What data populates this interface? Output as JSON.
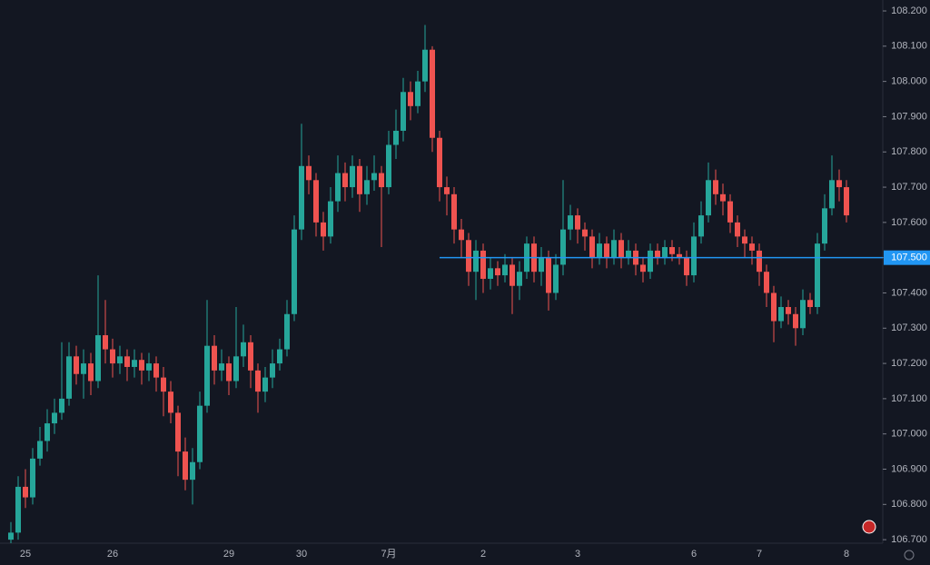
{
  "chart_data": {
    "type": "candlestick",
    "categories": [
      null,
      null,
      "25",
      null,
      null,
      null,
      null,
      null,
      null,
      null,
      null,
      null,
      null,
      null,
      "26",
      null,
      null,
      null,
      null,
      null,
      null,
      null,
      null,
      null,
      null,
      null,
      null,
      null,
      null,
      null,
      "29",
      null,
      null,
      null,
      null,
      null,
      null,
      null,
      null,
      null,
      "30",
      null,
      null,
      null,
      null,
      null,
      null,
      null,
      null,
      null,
      null,
      null,
      "7月",
      null,
      null,
      null,
      null,
      null,
      null,
      null,
      null,
      null,
      null,
      null,
      null,
      "2",
      null,
      null,
      null,
      null,
      null,
      null,
      null,
      null,
      null,
      null,
      null,
      null,
      "3",
      null,
      null,
      null,
      null,
      null,
      null,
      null,
      null,
      null,
      null,
      null,
      null,
      null,
      null,
      null,
      "6",
      null,
      null,
      null,
      null,
      null,
      null,
      null,
      null,
      "7",
      null,
      null,
      null,
      null,
      null,
      null,
      null,
      null,
      null,
      null,
      null,
      "8"
    ],
    "open": [
      106.7,
      106.72,
      106.85,
      106.82,
      106.93,
      106.98,
      107.03,
      107.06,
      107.1,
      107.22,
      107.17,
      107.2,
      107.15,
      107.28,
      107.24,
      107.2,
      107.22,
      107.19,
      107.21,
      107.18,
      107.2,
      107.16,
      107.12,
      107.06,
      106.95,
      106.87,
      106.92,
      107.08,
      107.25,
      107.18,
      107.2,
      107.15,
      107.22,
      107.26,
      107.18,
      107.12,
      107.16,
      107.2,
      107.24,
      107.34,
      107.58,
      107.76,
      107.72,
      107.6,
      107.56,
      107.66,
      107.74,
      107.7,
      107.76,
      107.68,
      107.72,
      107.74,
      107.7,
      107.82,
      107.86,
      107.97,
      107.93,
      108.0,
      108.09,
      107.84,
      107.7,
      107.68,
      107.58,
      107.55,
      107.46,
      107.52,
      107.44,
      107.47,
      107.45,
      107.48,
      107.42,
      107.46,
      107.54,
      107.46,
      107.5,
      107.4,
      107.48,
      107.58,
      107.62,
      107.58,
      107.56,
      107.5,
      107.54,
      107.5,
      107.55,
      107.5,
      107.52,
      107.48,
      107.46,
      107.52,
      107.5,
      107.53,
      107.51,
      107.5,
      107.45,
      107.56,
      107.62,
      107.72,
      107.68,
      107.66,
      107.6,
      107.56,
      107.54,
      107.52,
      107.46,
      107.4,
      107.32,
      107.36,
      107.34,
      107.3,
      107.38,
      107.36,
      107.54,
      107.64,
      107.72,
      107.7
    ],
    "high": [
      106.75,
      106.88,
      106.9,
      106.96,
      107.02,
      107.07,
      107.1,
      107.26,
      107.26,
      107.25,
      107.24,
      107.23,
      107.45,
      107.38,
      107.27,
      107.25,
      107.24,
      107.24,
      107.23,
      107.23,
      107.22,
      107.19,
      107.15,
      107.08,
      106.99,
      106.96,
      107.12,
      107.38,
      107.28,
      107.24,
      107.22,
      107.36,
      107.31,
      107.28,
      107.2,
      107.19,
      107.24,
      107.27,
      107.38,
      107.62,
      107.88,
      107.79,
      107.74,
      107.63,
      107.7,
      107.79,
      107.77,
      107.79,
      107.78,
      107.76,
      107.79,
      107.76,
      107.86,
      107.92,
      108.01,
      108.0,
      108.03,
      108.16,
      108.1,
      107.86,
      107.73,
      107.7,
      107.61,
      107.57,
      107.55,
      107.54,
      107.5,
      107.49,
      107.51,
      107.5,
      107.49,
      107.56,
      107.56,
      107.53,
      107.52,
      107.51,
      107.72,
      107.65,
      107.64,
      107.6,
      107.58,
      107.57,
      107.56,
      107.58,
      107.57,
      107.55,
      107.54,
      107.5,
      107.54,
      107.54,
      107.55,
      107.55,
      107.53,
      107.52,
      107.6,
      107.66,
      107.77,
      107.75,
      107.71,
      107.68,
      107.62,
      107.58,
      107.56,
      107.54,
      107.48,
      107.42,
      107.39,
      107.38,
      107.36,
      107.41,
      107.4,
      107.57,
      107.68,
      107.79,
      107.75,
      107.72
    ],
    "low": [
      106.69,
      106.7,
      106.79,
      106.8,
      106.91,
      106.95,
      107.0,
      107.04,
      107.08,
      107.14,
      107.1,
      107.11,
      107.13,
      107.2,
      107.16,
      107.17,
      107.15,
      107.16,
      107.14,
      107.15,
      107.12,
      107.05,
      107.03,
      106.88,
      106.84,
      106.8,
      106.9,
      107.06,
      107.14,
      107.15,
      107.11,
      107.13,
      107.19,
      107.13,
      107.06,
      107.09,
      107.13,
      107.18,
      107.22,
      107.32,
      107.55,
      107.68,
      107.56,
      107.52,
      107.54,
      107.63,
      107.66,
      107.67,
      107.63,
      107.65,
      107.69,
      107.53,
      107.68,
      107.78,
      107.83,
      107.89,
      107.91,
      107.97,
      107.8,
      107.66,
      107.62,
      107.54,
      107.5,
      107.42,
      107.38,
      107.4,
      107.41,
      107.42,
      107.43,
      107.34,
      107.38,
      107.44,
      107.43,
      107.42,
      107.35,
      107.38,
      107.45,
      107.55,
      107.54,
      107.52,
      107.47,
      107.48,
      107.47,
      107.48,
      107.47,
      107.48,
      107.45,
      107.43,
      107.44,
      107.48,
      107.48,
      107.49,
      107.48,
      107.42,
      107.43,
      107.54,
      107.6,
      107.65,
      107.62,
      107.57,
      107.53,
      107.5,
      107.48,
      107.42,
      107.36,
      107.26,
      107.3,
      107.31,
      107.25,
      107.28,
      107.34,
      107.34,
      107.52,
      107.62,
      107.66,
      107.6
    ],
    "close": [
      106.72,
      106.85,
      106.82,
      106.93,
      106.98,
      107.03,
      107.06,
      107.1,
      107.22,
      107.17,
      107.2,
      107.15,
      107.28,
      107.24,
      107.2,
      107.22,
      107.19,
      107.21,
      107.18,
      107.2,
      107.16,
      107.12,
      107.06,
      106.95,
      106.87,
      106.92,
      107.08,
      107.25,
      107.18,
      107.2,
      107.15,
      107.22,
      107.26,
      107.18,
      107.12,
      107.16,
      107.2,
      107.24,
      107.34,
      107.58,
      107.76,
      107.72,
      107.6,
      107.56,
      107.66,
      107.74,
      107.7,
      107.76,
      107.68,
      107.72,
      107.74,
      107.7,
      107.82,
      107.86,
      107.97,
      107.93,
      108.0,
      108.09,
      107.84,
      107.7,
      107.68,
      107.58,
      107.55,
      107.46,
      107.52,
      107.44,
      107.47,
      107.45,
      107.48,
      107.42,
      107.46,
      107.54,
      107.46,
      107.5,
      107.4,
      107.48,
      107.58,
      107.62,
      107.58,
      107.56,
      107.5,
      107.54,
      107.5,
      107.55,
      107.5,
      107.52,
      107.48,
      107.46,
      107.52,
      107.5,
      107.53,
      107.51,
      107.5,
      107.45,
      107.56,
      107.62,
      107.72,
      107.68,
      107.66,
      107.6,
      107.56,
      107.54,
      107.52,
      107.46,
      107.4,
      107.32,
      107.36,
      107.34,
      107.3,
      107.38,
      107.36,
      107.54,
      107.64,
      107.72,
      107.7,
      107.62
    ],
    "up_color": "#26a69a",
    "down_color": "#ef5350",
    "ylim": [
      106.69,
      108.231
    ],
    "yticks": [
      {
        "value": 106.7,
        "label": "106.700"
      },
      {
        "value": 106.8,
        "label": "106.800"
      },
      {
        "value": 106.9,
        "label": "106.900"
      },
      {
        "value": 107.0,
        "label": "107.000"
      },
      {
        "value": 107.1,
        "label": "107.100"
      },
      {
        "value": 107.2,
        "label": "107.200"
      },
      {
        "value": 107.3,
        "label": "107.300"
      },
      {
        "value": 107.4,
        "label": "107.400"
      },
      {
        "value": 107.5,
        "label": "107.500"
      },
      {
        "value": 107.6,
        "label": "107.600"
      },
      {
        "value": 107.7,
        "label": "107.700"
      },
      {
        "value": 107.8,
        "label": "107.800"
      },
      {
        "value": 107.9,
        "label": "107.900"
      },
      {
        "value": 108.0,
        "label": "108.000"
      },
      {
        "value": 108.1,
        "label": "108.100"
      },
      {
        "value": 108.2,
        "label": "108.200"
      }
    ],
    "price_line": {
      "value": 107.5,
      "label": "107.500",
      "color": "#2196f3"
    }
  }
}
